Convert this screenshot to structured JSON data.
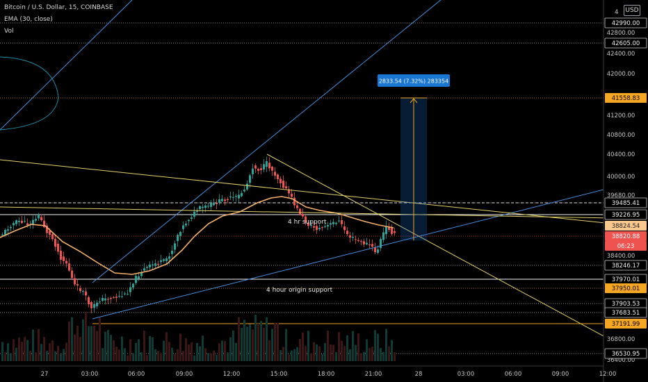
{
  "header": {
    "symbol_line": "Bitcoin / U.S. Dollar, 15, COINBASE",
    "ema_line": "EMA (30, close)",
    "vol_line": "Vol",
    "currency_button": "USD"
  },
  "chart_data": {
    "type": "candlestick",
    "symbol": "Bitcoin / U.S. Dollar",
    "interval": "15",
    "exchange": "COINBASE",
    "price_axis_ticks": [
      "42990.00",
      "42800.00",
      "42605.00",
      "42400.00",
      "42000.00",
      "41200.00",
      "40800.00",
      "40400.00",
      "40000.00",
      "39680.00",
      "38400.00",
      "36800.00",
      "36400.00"
    ],
    "price_axis_top_partial": "4",
    "time_axis_ticks": [
      "27",
      "03:00",
      "06:00",
      "09:00",
      "12:00",
      "15:00",
      "18:00",
      "21:00",
      "28",
      "03:00",
      "06:00",
      "09:00",
      "12:00"
    ],
    "price_labels": [
      {
        "value": "42990.00",
        "style": "white"
      },
      {
        "value": "42605.00",
        "style": "white"
      },
      {
        "value": "41558.83",
        "style": "orange"
      },
      {
        "value": "39485.41",
        "style": "white"
      },
      {
        "value": "39226.95",
        "style": "white"
      },
      {
        "value": "38824.54",
        "style": "ema"
      },
      {
        "value": "38820.88",
        "style": "last"
      },
      {
        "value": "06:23",
        "style": "last"
      },
      {
        "value": "38246.17",
        "style": "white"
      },
      {
        "value": "37970.01",
        "style": "white"
      },
      {
        "value": "37950.01",
        "style": "orange"
      },
      {
        "value": "37903.53",
        "style": "white"
      },
      {
        "value": "37683.51",
        "style": "white"
      },
      {
        "value": "37191.99",
        "style": "orange"
      },
      {
        "value": "36530.95",
        "style": "white"
      }
    ],
    "annotations": [
      {
        "text": "4 hr support"
      },
      {
        "text": "4 hour origin support"
      },
      {
        "text": "2833.54 (7.32%) 283354"
      }
    ],
    "levels": [
      42990.0,
      42605.0,
      41558.83,
      39485.41,
      39226.95,
      38246.17,
      37970.01,
      37950.01,
      37903.53,
      37683.51,
      37191.99,
      36530.95
    ],
    "ema_period": 30,
    "last_price": 38820.88,
    "ema_value": 38824.54,
    "time_to_close": "06:23",
    "measure": {
      "change": 2833.54,
      "percent": 7.32,
      "ticks": 283354,
      "from": 38725.29,
      "to": 41558.83
    },
    "colors": {
      "up": "#26a69a",
      "down": "#ef5350",
      "ema": "#f6b26b",
      "trend": "#4a90e2",
      "yellow": "#e6d36b",
      "orange": "#f5a623",
      "measure": "#1565c0"
    },
    "grid": false
  }
}
